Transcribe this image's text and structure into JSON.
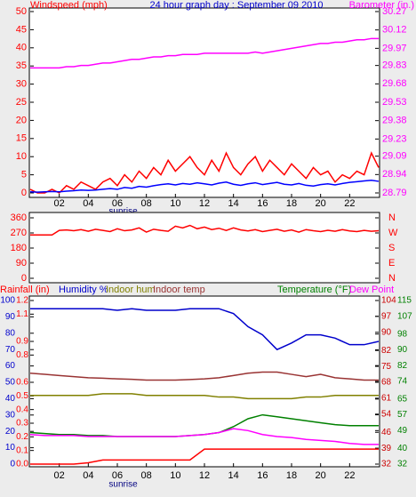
{
  "chart_data": [
    {
      "type": "line",
      "title": "24 hour graph day : September 09 2010",
      "ylabel": "Windspeed (mph)",
      "y2label": "Barometer (in.)",
      "title_color": "#0000cc",
      "ycolor": "#ff0000",
      "y2color": "#ff00ff",
      "xlim": [
        0,
        24
      ],
      "xticks": [
        {
          "value": 2,
          "label": "02"
        },
        {
          "value": 4,
          "label": "04"
        },
        {
          "value": 6,
          "label": "06"
        },
        {
          "value": 8,
          "label": "08"
        },
        {
          "value": 10,
          "label": "10"
        },
        {
          "value": 12,
          "label": "12"
        },
        {
          "value": 14,
          "label": "14"
        },
        {
          "value": 16,
          "label": "16"
        },
        {
          "value": 18,
          "label": "18"
        },
        {
          "value": 20,
          "label": "20"
        },
        {
          "value": 22,
          "label": "22"
        }
      ],
      "annotations": [
        {
          "text": "sunrise",
          "x": 6.4
        }
      ],
      "ylim": [
        0,
        50
      ],
      "yticks": [
        0,
        5,
        10,
        15,
        20,
        25,
        30,
        35,
        40,
        45,
        50
      ],
      "y2lim": [
        28.79,
        30.27
      ],
      "y2ticks": [
        28.79,
        28.94,
        29.09,
        29.23,
        29.38,
        29.53,
        29.68,
        29.83,
        29.97,
        30.12,
        30.27
      ],
      "x": [
        0,
        0.5,
        1,
        1.5,
        2,
        2.5,
        3,
        3.5,
        4,
        4.5,
        5,
        5.5,
        6,
        6.5,
        7,
        7.5,
        8,
        8.5,
        9,
        9.5,
        10,
        10.5,
        11,
        11.5,
        12,
        12.5,
        13,
        13.5,
        14,
        14.5,
        15,
        15.5,
        16,
        16.5,
        17,
        17.5,
        18,
        18.5,
        19,
        19.5,
        20,
        20.5,
        21,
        21.5,
        22,
        22.5,
        23,
        23.5,
        24
      ],
      "series": [
        {
          "color": "#ff0000",
          "values": [
            1,
            0,
            0,
            1,
            0,
            2,
            1,
            3,
            2,
            1,
            3,
            4,
            2,
            5,
            3,
            6,
            4,
            7,
            5,
            9,
            6,
            8,
            10,
            7,
            5,
            9,
            6,
            11,
            7,
            5,
            8,
            10,
            6,
            9,
            7,
            5,
            8,
            6,
            4,
            7,
            5,
            6,
            3,
            5,
            4,
            6,
            5,
            11,
            7
          ]
        },
        {
          "color": "#0000ff",
          "values": [
            0.3,
            0.2,
            0.3,
            0.4,
            0.3,
            0.5,
            0.6,
            0.8,
            0.7,
            0.8,
            1,
            1.2,
            1,
            1.5,
            1.3,
            1.8,
            1.6,
            2,
            2.3,
            2.5,
            2.2,
            2.6,
            2.4,
            2.8,
            2.5,
            2.2,
            2.7,
            3,
            2.4,
            2.1,
            2.5,
            2.8,
            2.3,
            2.6,
            2.9,
            2.4,
            2.2,
            2.6,
            2.1,
            1.9,
            2.3,
            2.5,
            2.2,
            2.6,
            2.9,
            3.1,
            3.3,
            3.5,
            3.2
          ]
        },
        {
          "color": "#ff00ff",
          "axis": "y2",
          "values": [
            29.81,
            29.81,
            29.81,
            29.81,
            29.81,
            29.82,
            29.82,
            29.83,
            29.83,
            29.84,
            29.85,
            29.85,
            29.86,
            29.87,
            29.88,
            29.88,
            29.89,
            29.9,
            29.9,
            29.91,
            29.91,
            29.92,
            29.92,
            29.92,
            29.93,
            29.93,
            29.93,
            29.93,
            29.93,
            29.93,
            29.93,
            29.94,
            29.93,
            29.94,
            29.95,
            29.96,
            29.97,
            29.98,
            29.99,
            30.0,
            30.01,
            30.01,
            30.02,
            30.02,
            30.03,
            30.04,
            30.04,
            30.05,
            30.05
          ]
        }
      ]
    },
    {
      "type": "line",
      "ycolor": "#ff0000",
      "y2color": "#ff0000",
      "xlim": [
        0,
        24
      ],
      "ylim": [
        0,
        360
      ],
      "yticks": [
        0,
        90,
        180,
        270,
        360
      ],
      "y2lim": [
        0,
        360
      ],
      "y2ticks": [
        {
          "value": 360,
          "label": "N"
        },
        {
          "value": 270,
          "label": "W"
        },
        {
          "value": 180,
          "label": "S"
        },
        {
          "value": 90,
          "label": "E"
        },
        {
          "value": 0,
          "label": "N"
        }
      ],
      "x": [
        0,
        0.5,
        1,
        1.5,
        2,
        2.5,
        3,
        3.5,
        4,
        4.5,
        5,
        5.5,
        6,
        6.5,
        7,
        7.5,
        8,
        8.5,
        9,
        9.5,
        10,
        10.5,
        11,
        11.5,
        12,
        12.5,
        13,
        13.5,
        14,
        14.5,
        15,
        15.5,
        16,
        16.5,
        17,
        17.5,
        18,
        18.5,
        19,
        19.5,
        20,
        20.5,
        21,
        21.5,
        22,
        22.5,
        23,
        23.5,
        24
      ],
      "series": [
        {
          "color": "#ff0000",
          "values": [
            258,
            258,
            258,
            258,
            285,
            288,
            283,
            290,
            280,
            292,
            285,
            278,
            295,
            283,
            288,
            300,
            275,
            292,
            285,
            280,
            310,
            300,
            315,
            295,
            305,
            290,
            298,
            285,
            300,
            288,
            282,
            290,
            278,
            285,
            292,
            280,
            288,
            275,
            290,
            283,
            278,
            286,
            280,
            290,
            282,
            278,
            285,
            280,
            283
          ]
        }
      ]
    },
    {
      "type": "line",
      "ycolor": "#0000cc",
      "y2color": "#ff0000",
      "y3color": "#cc0000",
      "y4color": "#008000",
      "xlim": [
        0,
        24
      ],
      "xticks": [
        {
          "value": 2,
          "label": "02"
        },
        {
          "value": 4,
          "label": "04"
        },
        {
          "value": 6,
          "label": "06"
        },
        {
          "value": 8,
          "label": "08"
        },
        {
          "value": 10,
          "label": "10"
        },
        {
          "value": 12,
          "label": "12"
        },
        {
          "value": 14,
          "label": "14"
        },
        {
          "value": 16,
          "label": "16"
        },
        {
          "value": 18,
          "label": "18"
        },
        {
          "value": 20,
          "label": "20"
        },
        {
          "value": 22,
          "label": "22"
        }
      ],
      "annotations": [
        {
          "text": "sunrise",
          "x": 6.4
        }
      ],
      "ylim": [
        0,
        100
      ],
      "yticks": [
        0,
        10,
        20,
        30,
        40,
        50,
        60,
        70,
        80,
        90,
        100
      ],
      "y2lim": [
        0,
        1.2
      ],
      "y2ticks": [
        {
          "value": 0,
          "label": "0.0"
        },
        0.1,
        0.2,
        0.3,
        0.4,
        0.5,
        0.6,
        0.8,
        0.9,
        1.1,
        1.2
      ],
      "y3lim": [
        32,
        104
      ],
      "y3ticks": [
        32,
        39,
        46,
        54,
        61,
        68,
        75,
        82,
        90,
        97,
        104
      ],
      "y4lim": [
        32,
        115
      ],
      "y4ticks": [
        32,
        40,
        49,
        57,
        65,
        74,
        82,
        90,
        98,
        107,
        115
      ],
      "x": [
        0,
        1,
        2,
        3,
        4,
        5,
        6,
        7,
        8,
        9,
        10,
        11,
        12,
        13,
        14,
        15,
        16,
        17,
        18,
        19,
        20,
        21,
        22,
        23,
        24
      ],
      "series": [
        {
          "name": "Rainfall (in)",
          "color": "#ff0000",
          "axis": "y2",
          "values": [
            0,
            0,
            0,
            0,
            0.01,
            0.03,
            0.03,
            0.03,
            0.03,
            0.03,
            0.03,
            0.03,
            0.11,
            0.11,
            0.11,
            0.11,
            0.11,
            0.11,
            0.11,
            0.11,
            0.11,
            0.11,
            0.11,
            0.11,
            0.11
          ]
        },
        {
          "name": "Humidity %",
          "color": "#0000cc",
          "values": [
            95,
            95,
            95,
            95,
            95,
            95,
            94,
            95,
            94,
            94,
            94,
            95,
            95,
            95,
            92,
            84,
            79,
            70,
            74,
            79,
            79,
            77,
            73,
            73,
            75
          ]
        },
        {
          "name": "Indoor hum",
          "color": "#808000",
          "values": [
            42,
            42,
            42,
            42,
            42,
            43,
            43,
            43,
            42,
            42,
            42,
            42,
            42,
            41,
            41,
            40,
            40,
            40,
            40,
            41,
            41,
            42,
            42,
            42,
            42
          ]
        },
        {
          "name": "Indoor temp",
          "color": "#993333",
          "axis": "y3",
          "values": [
            72,
            71.5,
            71,
            70.5,
            70,
            69.8,
            69.5,
            69.3,
            69,
            69,
            69,
            69.2,
            69.5,
            70,
            71,
            72,
            72.5,
            72.5,
            71.5,
            70.5,
            71.5,
            70,
            69.5,
            69,
            69
          ]
        },
        {
          "name": "Temperature (°F)",
          "color": "#008000",
          "axis": "y4",
          "values": [
            48,
            47.5,
            47,
            47,
            46.5,
            46.5,
            46,
            46,
            46,
            46,
            46,
            46.5,
            47,
            48,
            51,
            55,
            57,
            56,
            55,
            54,
            53,
            52,
            51.5,
            51.5,
            51.5
          ]
        },
        {
          "name": "Dew Point",
          "color": "#ff00ff",
          "axis": "y4",
          "values": [
            47,
            46.5,
            46.5,
            46.5,
            46,
            46,
            46,
            46,
            46,
            46,
            46,
            46.5,
            47,
            48,
            50,
            49,
            47,
            46,
            45.5,
            44.5,
            44,
            43.5,
            42.5,
            42,
            42
          ]
        }
      ]
    }
  ]
}
